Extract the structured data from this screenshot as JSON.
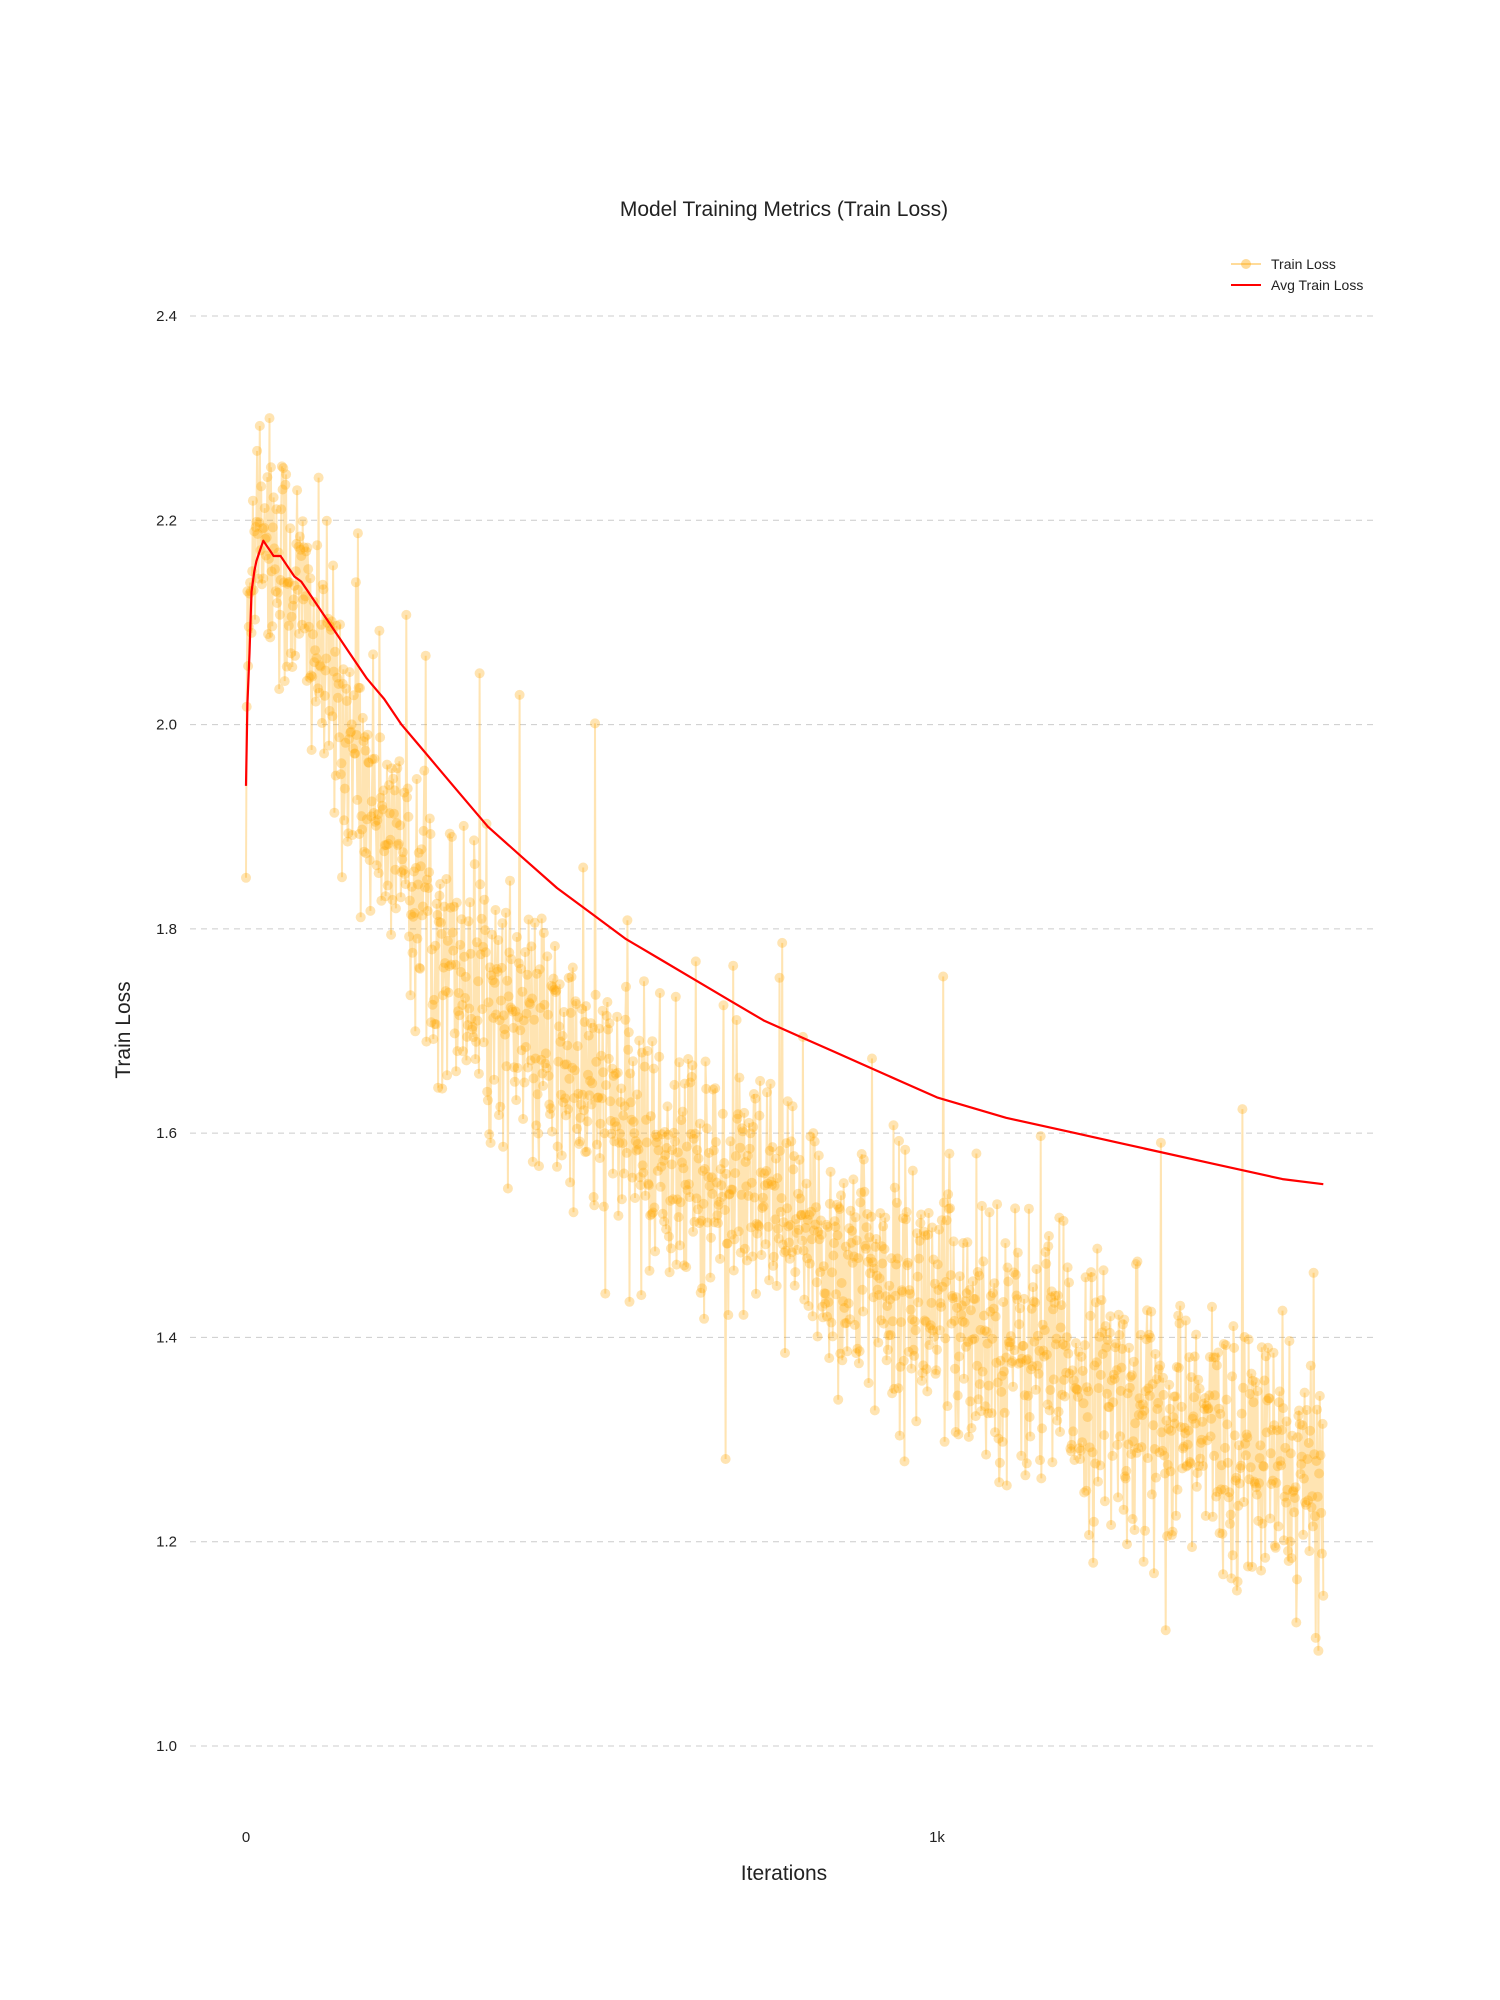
{
  "chart_data": {
    "type": "line",
    "title": "Model Training Metrics (Train Loss)",
    "xlabel": "Iterations",
    "ylabel": "Train Loss",
    "xlim": [
      -70,
      1640
    ],
    "ylim": [
      0.92,
      2.45
    ],
    "x_ticks": [
      0,
      1000
    ],
    "x_tick_labels": [
      "0",
      "1k"
    ],
    "y_ticks": [
      1.0,
      1.2,
      1.4,
      1.6,
      1.8,
      2.0,
      2.2,
      2.4
    ],
    "y_tick_labels": [
      "1.0",
      "1.2",
      "1.4",
      "1.6",
      "1.8",
      "2.0",
      "2.2",
      "2.4"
    ],
    "grid": "horizontal-dashed",
    "legend_position": "top-right",
    "colors": {
      "train_loss": "#FFA500",
      "avg_train_loss": "#FF0000",
      "grid": "#cccccc"
    },
    "series": [
      {
        "name": "Train Loss",
        "style": "line+markers",
        "num_points": 1560,
        "x": [
          0,
          10,
          20,
          30,
          40,
          50,
          60,
          70,
          80,
          100,
          120,
          150,
          200,
          250,
          300,
          350,
          400,
          450,
          500,
          550,
          600,
          650,
          700,
          750,
          800,
          850,
          900,
          950,
          1000,
          1050,
          1100,
          1150,
          1200,
          1250,
          1300,
          1350,
          1400,
          1450,
          1500,
          1550,
          1559
        ],
        "y": [
          2.0,
          2.2,
          2.22,
          2.2,
          2.18,
          2.16,
          2.15,
          2.14,
          2.12,
          2.08,
          2.04,
          1.99,
          1.9,
          1.83,
          1.78,
          1.74,
          1.7,
          1.67,
          1.64,
          1.61,
          1.58,
          1.56,
          1.54,
          1.52,
          1.5,
          1.48,
          1.46,
          1.45,
          1.43,
          1.42,
          1.4,
          1.38,
          1.36,
          1.34,
          1.33,
          1.31,
          1.3,
          1.29,
          1.27,
          1.25,
          1.24
        ],
        "min": 1.02,
        "max": 2.3
      },
      {
        "name": "Avg Train Loss",
        "style": "line",
        "x": [
          0,
          2,
          5,
          8,
          12,
          15,
          20,
          25,
          30,
          35,
          40,
          45,
          50,
          60,
          70,
          80,
          90,
          100,
          110,
          120,
          130,
          150,
          175,
          200,
          225,
          250,
          275,
          300,
          350,
          400,
          450,
          500,
          550,
          600,
          650,
          700,
          750,
          800,
          850,
          900,
          950,
          1000,
          1100,
          1200,
          1300,
          1400,
          1500,
          1559
        ],
        "y": [
          1.94,
          2.02,
          2.07,
          2.13,
          2.15,
          2.16,
          2.17,
          2.18,
          2.175,
          2.17,
          2.165,
          2.165,
          2.165,
          2.155,
          2.145,
          2.14,
          2.13,
          2.12,
          2.11,
          2.1,
          2.09,
          2.07,
          2.045,
          2.025,
          2.0,
          1.98,
          1.96,
          1.94,
          1.9,
          1.87,
          1.84,
          1.815,
          1.79,
          1.77,
          1.75,
          1.73,
          1.71,
          1.695,
          1.68,
          1.665,
          1.65,
          1.635,
          1.615,
          1.6,
          1.585,
          1.57,
          1.555,
          1.55
        ]
      }
    ]
  }
}
